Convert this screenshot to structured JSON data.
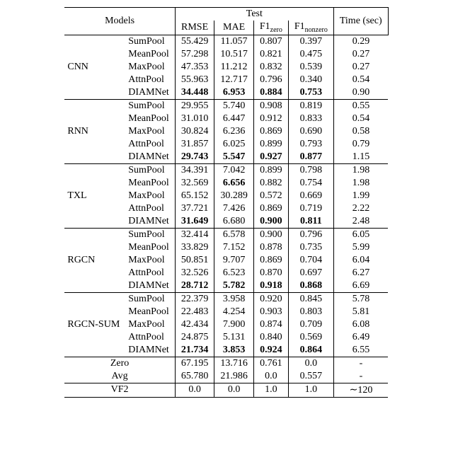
{
  "header": {
    "models": "Models",
    "test": "Test",
    "rmse": "RMSE",
    "mae": "MAE",
    "f1zero_prefix": "F1",
    "f1zero_sub": "zero",
    "f1nonzero_prefix": "F1",
    "f1nonzero_sub": "nonzero",
    "time": "Time (sec)"
  },
  "pool_names": [
    "SumPool",
    "MeanPool",
    "MaxPool",
    "AttnPool",
    "DIAMNet"
  ],
  "groups": [
    {
      "name": "CNN",
      "rows": [
        {
          "rmse": "55.429",
          "mae": "11.057",
          "f1z": "0.807",
          "f1nz": "0.397",
          "time": "0.29",
          "bold": []
        },
        {
          "rmse": "57.298",
          "mae": "10.517",
          "f1z": "0.821",
          "f1nz": "0.475",
          "time": "0.27",
          "bold": []
        },
        {
          "rmse": "47.353",
          "mae": "11.212",
          "f1z": "0.832",
          "f1nz": "0.539",
          "time": "0.27",
          "bold": []
        },
        {
          "rmse": "55.963",
          "mae": "12.717",
          "f1z": "0.796",
          "f1nz": "0.340",
          "time": "0.54",
          "bold": []
        },
        {
          "rmse": "34.448",
          "mae": "6.953",
          "f1z": "0.884",
          "f1nz": "0.753",
          "time": "0.90",
          "bold": [
            "rmse",
            "mae",
            "f1z",
            "f1nz"
          ]
        }
      ]
    },
    {
      "name": "RNN",
      "rows": [
        {
          "rmse": "29.955",
          "mae": "5.740",
          "f1z": "0.908",
          "f1nz": "0.819",
          "time": "0.55",
          "bold": []
        },
        {
          "rmse": "31.010",
          "mae": "6.447",
          "f1z": "0.912",
          "f1nz": "0.833",
          "time": "0.54",
          "bold": []
        },
        {
          "rmse": "30.824",
          "mae": "6.236",
          "f1z": "0.869",
          "f1nz": "0.690",
          "time": "0.58",
          "bold": []
        },
        {
          "rmse": "31.857",
          "mae": "6.025",
          "f1z": "0.899",
          "f1nz": "0.793",
          "time": "0.79",
          "bold": []
        },
        {
          "rmse": "29.743",
          "mae": "5.547",
          "f1z": "0.927",
          "f1nz": "0.877",
          "time": "1.15",
          "bold": [
            "rmse",
            "mae",
            "f1z",
            "f1nz"
          ]
        }
      ]
    },
    {
      "name": "TXL",
      "rows": [
        {
          "rmse": "34.391",
          "mae": "7.042",
          "f1z": "0.899",
          "f1nz": "0.798",
          "time": "1.98",
          "bold": []
        },
        {
          "rmse": "32.569",
          "mae": "6.656",
          "f1z": "0.882",
          "f1nz": "0.754",
          "time": "1.98",
          "bold": [
            "mae"
          ]
        },
        {
          "rmse": "65.152",
          "mae": "30.289",
          "f1z": "0.572",
          "f1nz": "0.669",
          "time": "1.99",
          "bold": []
        },
        {
          "rmse": "37.721",
          "mae": "7.426",
          "f1z": "0.869",
          "f1nz": "0.719",
          "time": "2.22",
          "bold": []
        },
        {
          "rmse": "31.649",
          "mae": "6.680",
          "f1z": "0.900",
          "f1nz": "0.811",
          "time": "2.48",
          "bold": [
            "rmse",
            "f1z",
            "f1nz"
          ]
        }
      ]
    },
    {
      "name": "RGCN",
      "rows": [
        {
          "rmse": "32.414",
          "mae": "6.578",
          "f1z": "0.900",
          "f1nz": "0.796",
          "time": "6.05",
          "bold": []
        },
        {
          "rmse": "33.829",
          "mae": "7.152",
          "f1z": "0.878",
          "f1nz": "0.735",
          "time": "5.99",
          "bold": []
        },
        {
          "rmse": "50.851",
          "mae": "9.707",
          "f1z": "0.869",
          "f1nz": "0.704",
          "time": "6.04",
          "bold": []
        },
        {
          "rmse": "32.526",
          "mae": "6.523",
          "f1z": "0.870",
          "f1nz": "0.697",
          "time": "6.27",
          "bold": []
        },
        {
          "rmse": "28.712",
          "mae": "5.782",
          "f1z": "0.918",
          "f1nz": "0.868",
          "time": "6.69",
          "bold": [
            "rmse",
            "mae",
            "f1z",
            "f1nz"
          ]
        }
      ]
    },
    {
      "name": "RGCN-SUM",
      "rows": [
        {
          "rmse": "22.379",
          "mae": "3.958",
          "f1z": "0.920",
          "f1nz": "0.845",
          "time": "5.78",
          "bold": []
        },
        {
          "rmse": "22.483",
          "mae": "4.254",
          "f1z": "0.903",
          "f1nz": "0.803",
          "time": "5.81",
          "bold": []
        },
        {
          "rmse": "42.434",
          "mae": "7.900",
          "f1z": "0.874",
          "f1nz": "0.709",
          "time": "6.08",
          "bold": []
        },
        {
          "rmse": "24.875",
          "mae": "5.131",
          "f1z": "0.840",
          "f1nz": "0.569",
          "time": "6.49",
          "bold": []
        },
        {
          "rmse": "21.734",
          "mae": "3.853",
          "f1z": "0.924",
          "f1nz": "0.864",
          "time": "6.55",
          "bold": [
            "rmse",
            "mae",
            "f1z",
            "f1nz"
          ]
        }
      ]
    }
  ],
  "baselines": [
    {
      "name": "Zero",
      "rmse": "67.195",
      "mae": "13.716",
      "f1z": "0.761",
      "f1nz": "0.0",
      "time": "-"
    },
    {
      "name": "Avg",
      "rmse": "65.780",
      "mae": "21.986",
      "f1z": "0.0",
      "f1nz": "0.557",
      "time": "-"
    }
  ],
  "vf2": {
    "name": "VF2",
    "rmse": "0.0",
    "mae": "0.0",
    "f1z": "1.0",
    "f1nz": "1.0",
    "time": "∼120"
  }
}
